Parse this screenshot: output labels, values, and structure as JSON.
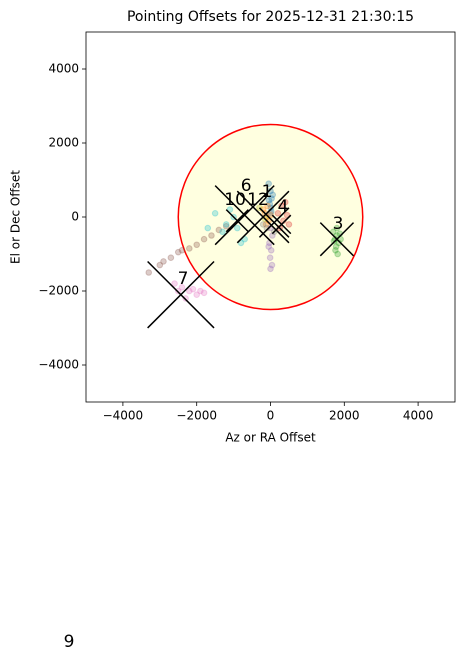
{
  "chart_data": {
    "type": "scatter",
    "title": "Pointing Offsets for 2025-12-31 21:30:15",
    "x_label": "Az or RA Offset",
    "y_label": "El or Dec Offset",
    "xlim": [
      -5000,
      5000
    ],
    "ylim": [
      -5000,
      5000
    ],
    "xticks": [
      {
        "value": -4000,
        "label": "−4000"
      },
      {
        "value": -2000,
        "label": "−2000"
      },
      0,
      2000,
      4000
    ],
    "yticks": [
      {
        "value": -4000,
        "label": "−4000"
      },
      {
        "value": -2000,
        "label": "−2000"
      },
      0,
      2000,
      4000
    ],
    "circle": {
      "x": 0,
      "y": 0,
      "radius": 2500,
      "facecolor": "#ffffe0",
      "edgecolor": "#ff0000"
    },
    "series": [
      {
        "color": "#1f77b4",
        "x": [
          -50,
          0,
          30,
          -20,
          60,
          10,
          -40,
          20
        ],
        "y": [
          900,
          700,
          500,
          350,
          600,
          250,
          450,
          150
        ]
      },
      {
        "color": "#ff7f0e",
        "x": [
          -150,
          -100,
          -50,
          -200,
          0,
          -120,
          -80
        ],
        "y": [
          100,
          0,
          -100,
          200,
          50,
          -200,
          300
        ]
      },
      {
        "color": "#2ca02c",
        "x": [
          1700,
          1750,
          1800,
          1850,
          1900,
          1780,
          1820,
          1720,
          1880,
          1800,
          1760
        ],
        "y": [
          -400,
          -600,
          -500,
          -700,
          -600,
          -800,
          -1000,
          -650,
          -450,
          -300,
          -900
        ]
      },
      {
        "color": "#d62728",
        "x": [
          200,
          350,
          450,
          300,
          500,
          250,
          400
        ],
        "y": [
          100,
          -100,
          50,
          300,
          -200,
          -300,
          400
        ]
      },
      {
        "color": "#9467bd",
        "x": [
          0,
          50,
          -30,
          20,
          -10,
          40,
          0,
          -50
        ],
        "y": [
          -300,
          -500,
          -700,
          -900,
          -1100,
          -1300,
          -1400,
          -800
        ]
      },
      {
        "color": "#8c564b",
        "x": [
          -3300,
          -3000,
          -2700,
          -2400,
          -2200,
          -2000,
          -1800,
          -1600,
          -1400,
          -1200,
          -2900,
          -2500
        ],
        "y": [
          -1500,
          -1300,
          -1100,
          -900,
          -850,
          -750,
          -600,
          -500,
          -350,
          -250,
          -1200,
          -950
        ]
      },
      {
        "color": "#e377c2",
        "x": [
          -2600,
          -2400,
          -2200,
          -2000,
          -1800,
          -2300,
          -2100,
          -1900,
          -2500
        ],
        "y": [
          -1800,
          -1900,
          -2000,
          -2100,
          -2050,
          -2200,
          -1950,
          -2000,
          -2000
        ]
      },
      {
        "color": "#7f7f7f",
        "x": [
          -200,
          100,
          0,
          -100
        ],
        "y": [
          -200,
          -400,
          100,
          -300
        ]
      },
      {
        "color": "#bcbd22",
        "x": [
          -300,
          -150
        ],
        "y": [
          250,
          -50
        ]
      },
      {
        "color": "#17becf",
        "x": [
          -1500,
          -1200,
          -1000,
          -900,
          -700,
          -1300,
          -1100,
          -800,
          -1700
        ],
        "y": [
          100,
          -200,
          0,
          -300,
          -600,
          -400,
          200,
          -700,
          -300
        ]
      }
    ],
    "crosses": {
      "color": "#000000",
      "x": [
        -2430,
        -700,
        -200,
        100,
        300,
        1800,
        -900
      ],
      "y": [
        -2100,
        50,
        0,
        -150,
        -200,
        -600,
        -100
      ],
      "size": [
        900,
        800,
        700,
        400,
        250,
        450,
        300
      ]
    },
    "annotations": [
      {
        "text": "1",
        "x": -95,
        "y": 680
      },
      {
        "text": "6",
        "x": -660,
        "y": 840
      },
      {
        "text": "10",
        "x": -960,
        "y": 460
      },
      {
        "text": "12",
        "x": -340,
        "y": 460
      },
      {
        "text": "4",
        "x": 340,
        "y": 270
      },
      {
        "text": "3",
        "x": 1830,
        "y": -190
      },
      {
        "text": "7",
        "x": -2370,
        "y": -1680
      },
      {
        "text": "9",
        "x": -5460,
        "y": -11490
      }
    ]
  }
}
